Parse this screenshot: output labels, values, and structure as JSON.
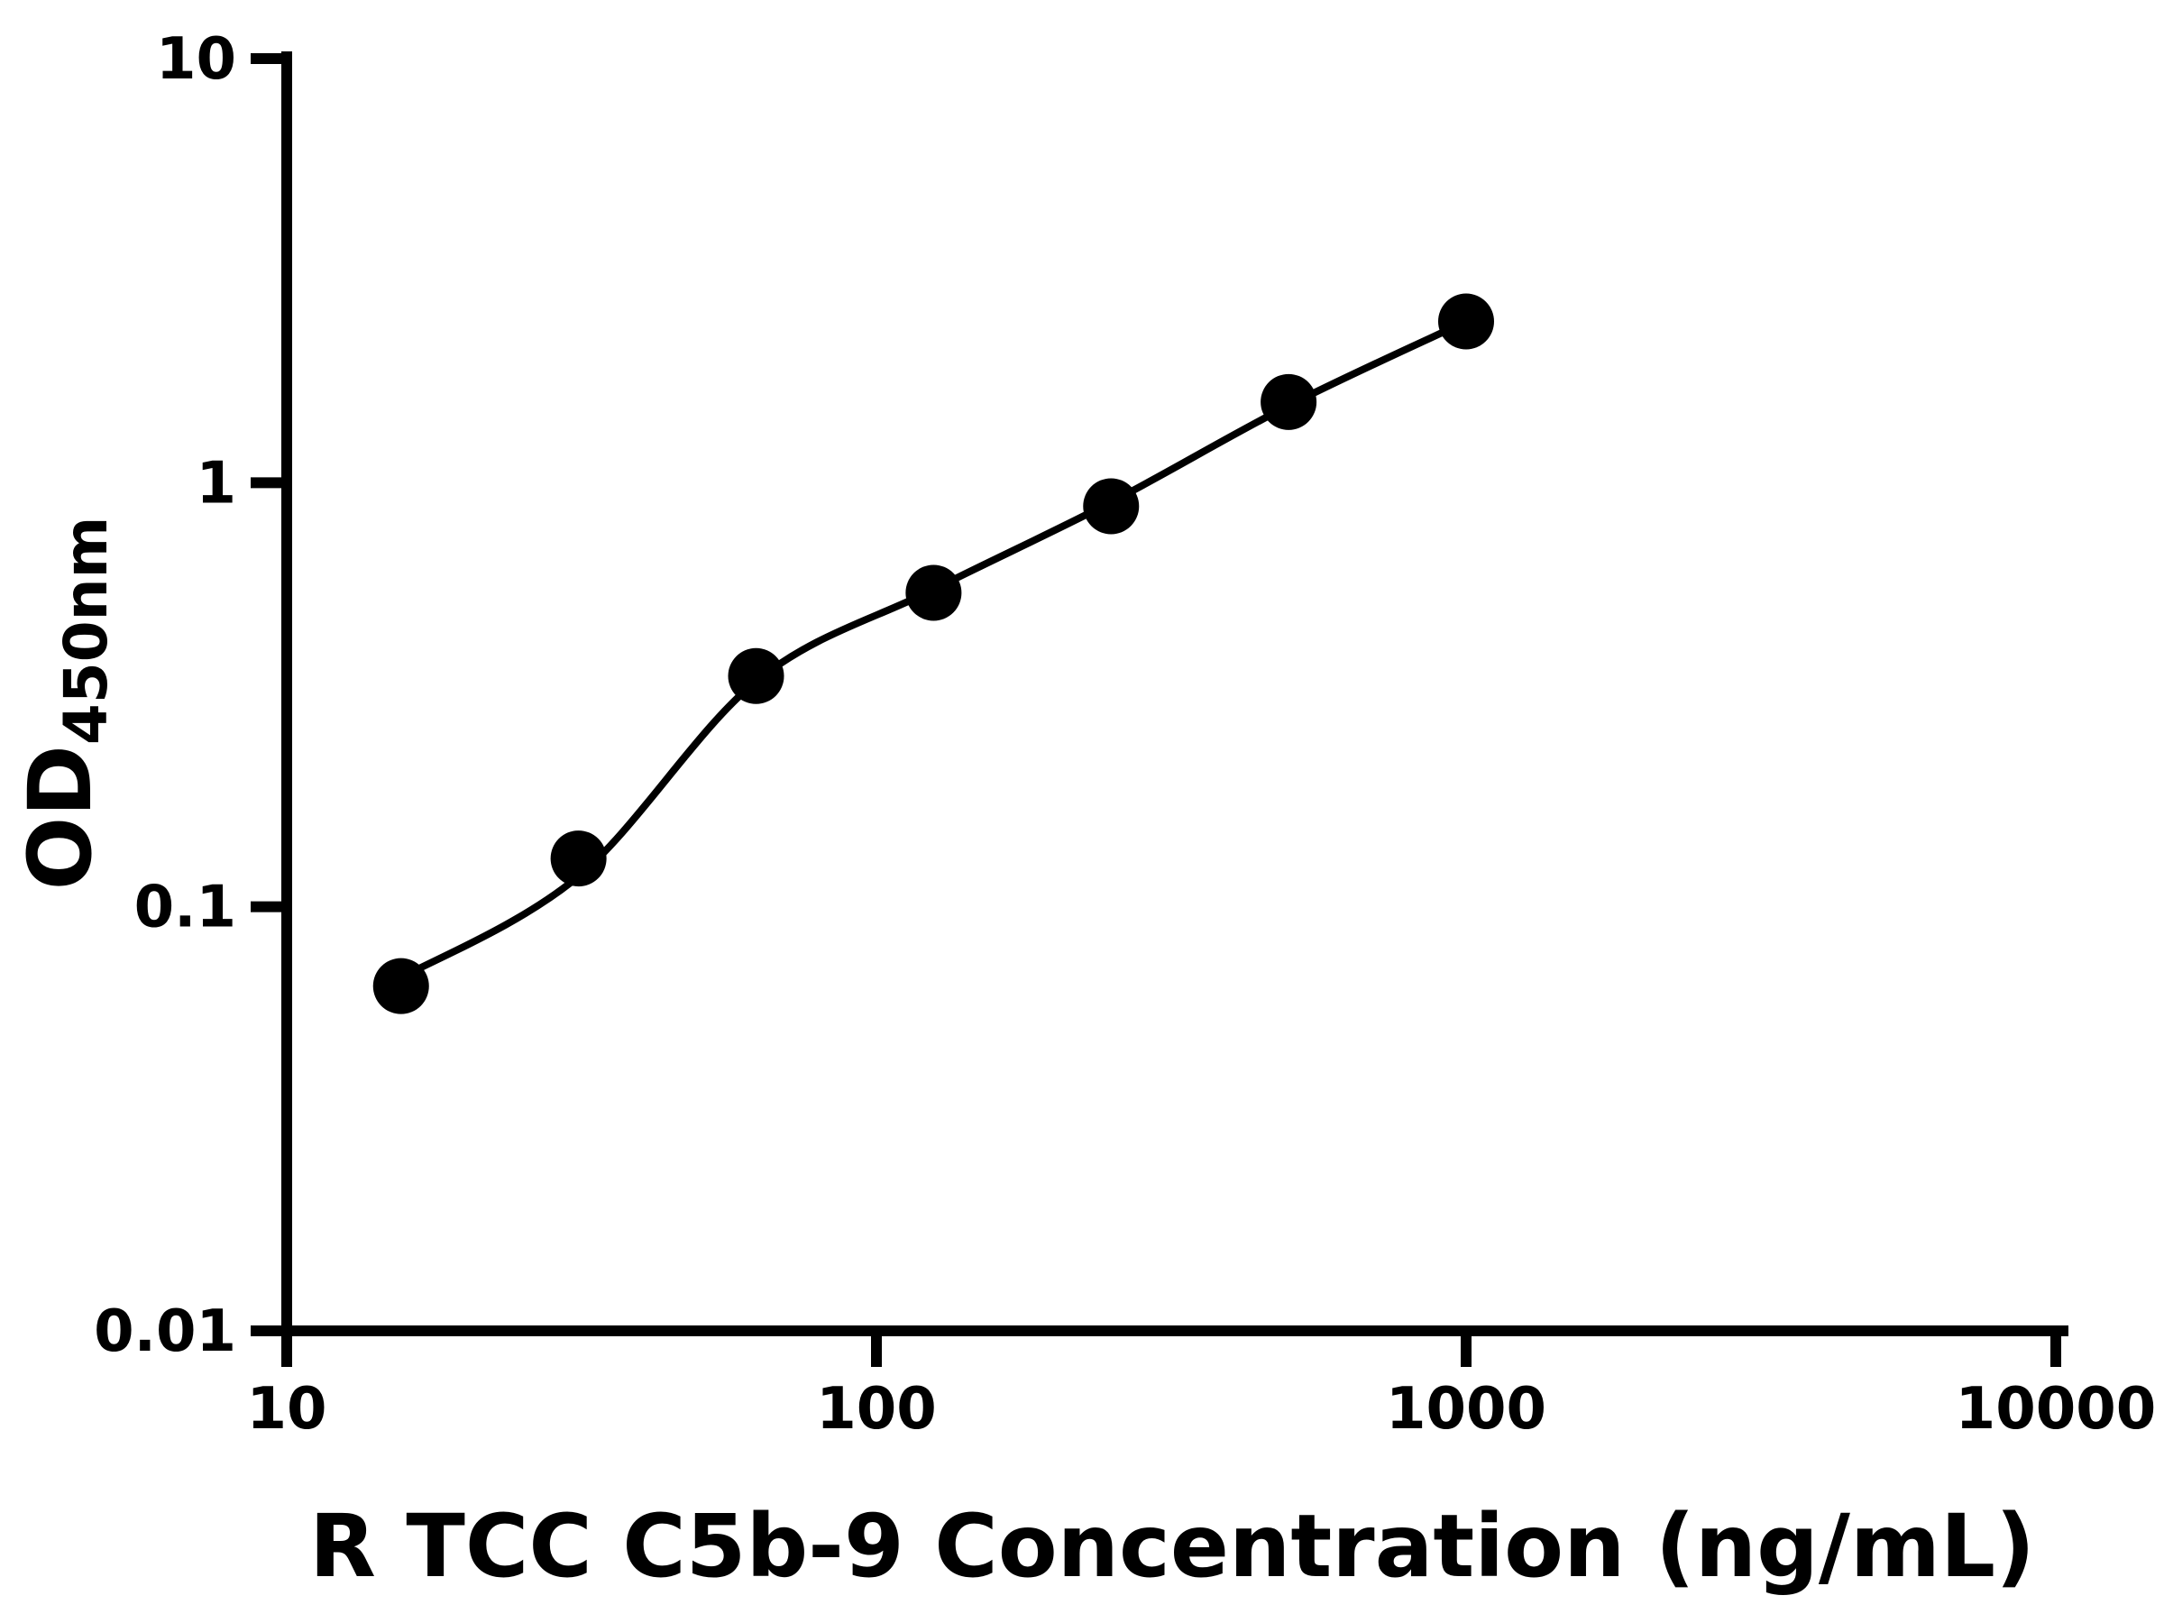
{
  "chart_data": {
    "type": "scatter",
    "title": "",
    "xlabel": "R TCC C5b-9 Concentration (ng/mL)",
    "ylabel": "OD",
    "ylabel_sub": "450nm",
    "x_scale": "log",
    "y_scale": "log",
    "xlim": [
      10,
      10000
    ],
    "ylim": [
      0.01,
      10
    ],
    "grid": false,
    "legend": "none",
    "marker_color": "#000000",
    "line_color": "#000000",
    "axis_color": "#000000",
    "x_ticks": [
      {
        "value": 10,
        "label": "10"
      },
      {
        "value": 100,
        "label": "100"
      },
      {
        "value": 1000,
        "label": "1000"
      },
      {
        "value": 10000,
        "label": "10000"
      }
    ],
    "y_ticks": [
      {
        "value": 0.01,
        "label": "0.01"
      },
      {
        "value": 0.1,
        "label": "0.1"
      },
      {
        "value": 1,
        "label": "1"
      },
      {
        "value": 10,
        "label": "10"
      }
    ],
    "series": [
      {
        "name": "standard-curve-points",
        "points": [
          [
            15.625,
            0.065
          ],
          [
            31.25,
            0.13
          ],
          [
            62.5,
            0.35
          ],
          [
            125,
            0.55
          ],
          [
            250,
            0.88
          ],
          [
            500,
            1.55
          ],
          [
            1000,
            2.4
          ]
        ]
      }
    ],
    "fit_curve": [
      [
        15.625,
        0.068
      ],
      [
        31.25,
        0.118
      ],
      [
        62.5,
        0.34
      ],
      [
        125,
        0.56
      ],
      [
        250,
        0.9
      ],
      [
        500,
        1.52
      ],
      [
        1000,
        2.4
      ]
    ]
  }
}
